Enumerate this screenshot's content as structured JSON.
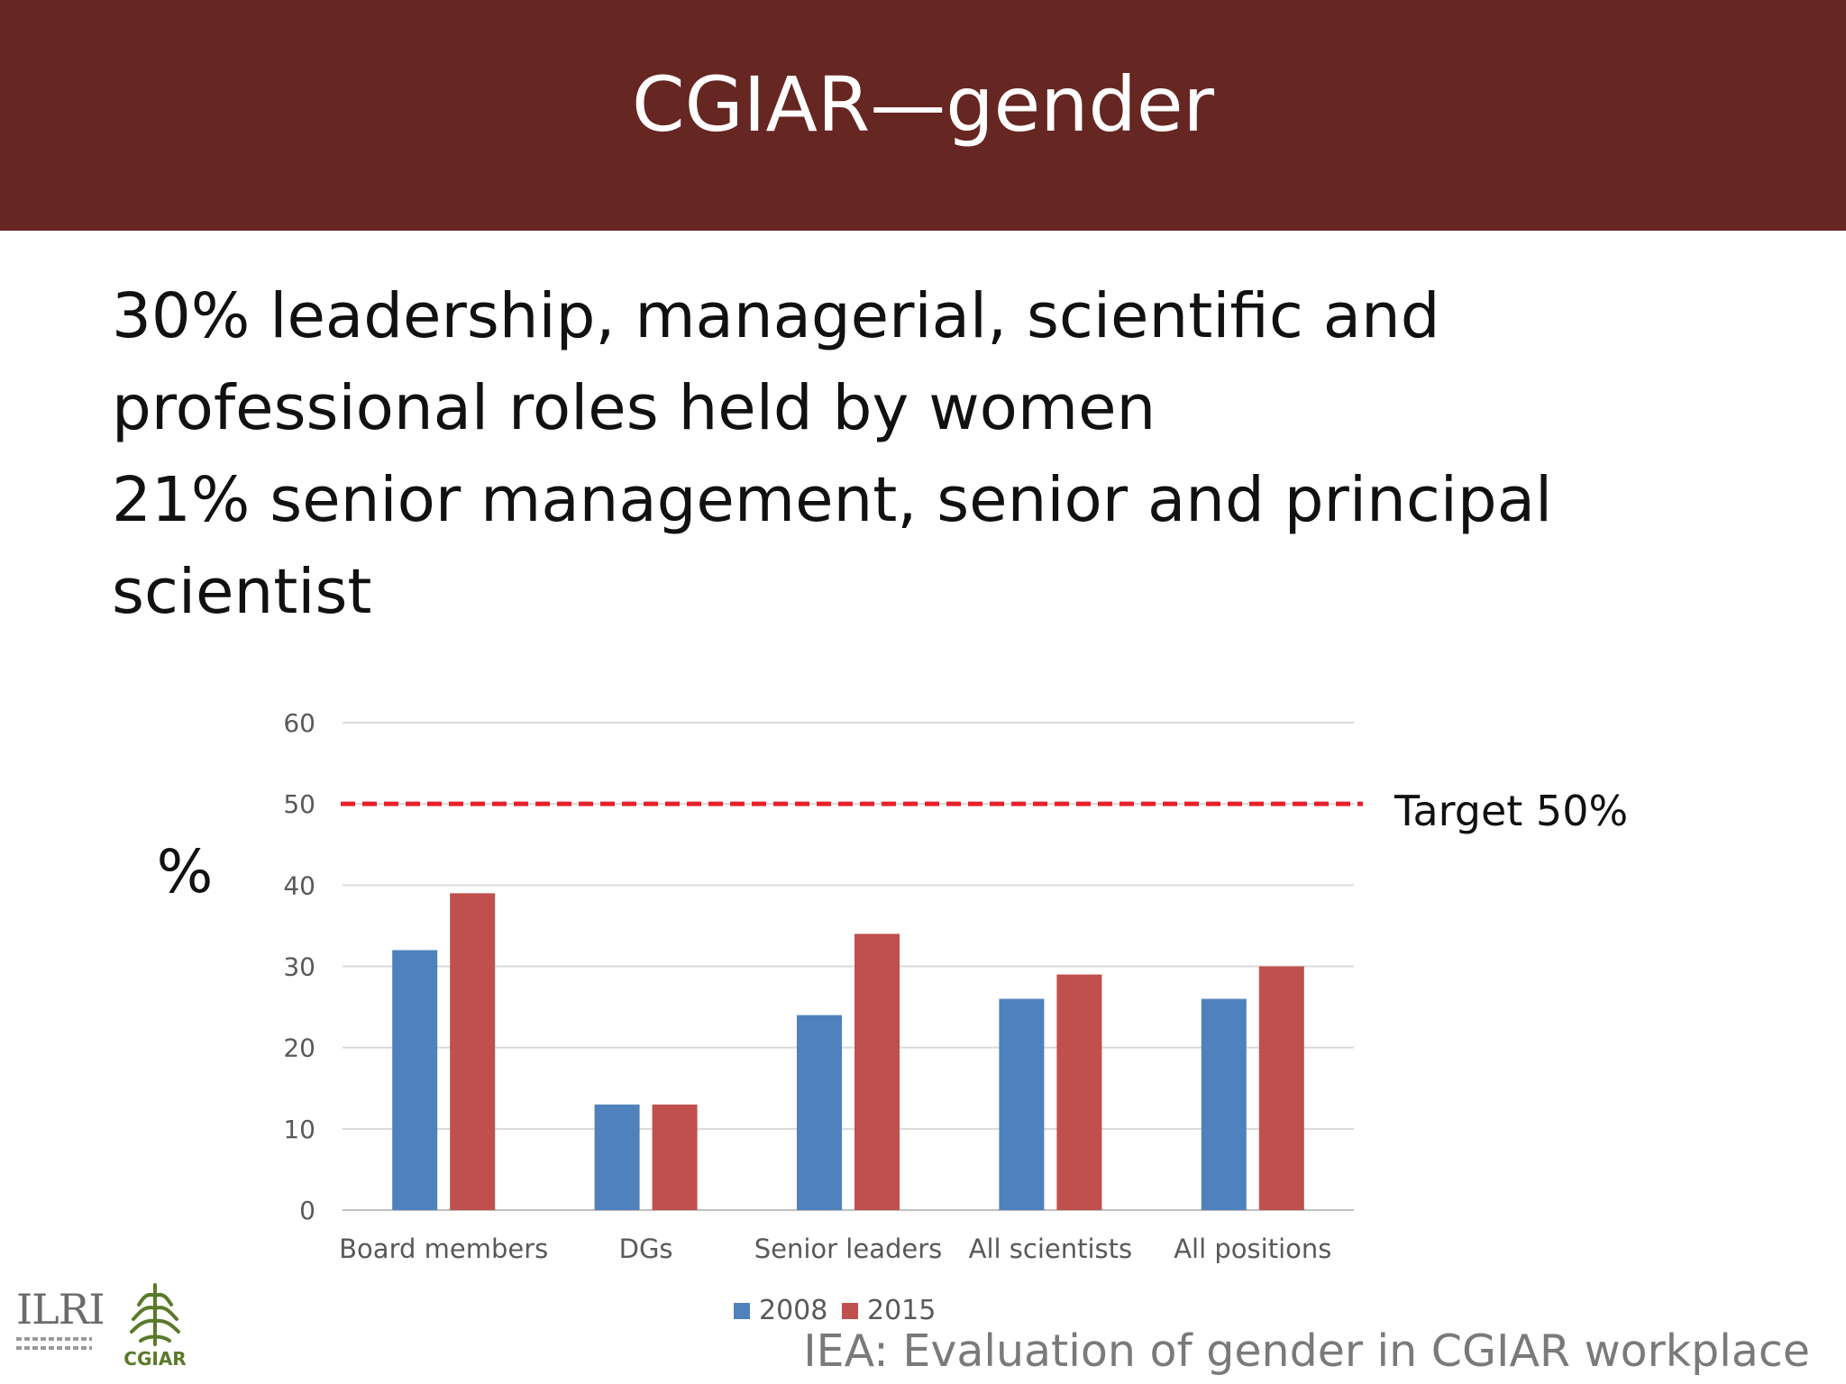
{
  "slide": {
    "title": "CGIAR—gender",
    "bullets": [
      "30% leadership, managerial, scientific and",
      "professional roles held by women",
      "21% senior management, senior and principal",
      "scientist"
    ],
    "source": "IEA: Evaluation of gender in CGIAR workplace",
    "logos": {
      "ilri": "ILRI",
      "cgiar": "CGIAR"
    }
  },
  "colors": {
    "header_bg": "#662622",
    "series_2008": "#4F81BD",
    "series_2015": "#C0504D",
    "target_line": "#E8202A",
    "gridline": "#D9D9D9"
  },
  "chart_data": {
    "type": "bar",
    "categories": [
      "Board members",
      "DGs",
      "Senior leaders",
      "All scientists",
      "All positions"
    ],
    "series": [
      {
        "name": "2008",
        "values": [
          32,
          13,
          24,
          26,
          26
        ]
      },
      {
        "name": "2015",
        "values": [
          39,
          13,
          34,
          29,
          30
        ]
      }
    ],
    "ylabel": "%",
    "ylim": [
      0,
      60
    ],
    "yticks": [
      0,
      10,
      20,
      30,
      40,
      50,
      60
    ],
    "grid": true,
    "legend": "bottom",
    "reference_line": {
      "value": 50,
      "label": "Target 50%",
      "style": "dashed"
    }
  }
}
